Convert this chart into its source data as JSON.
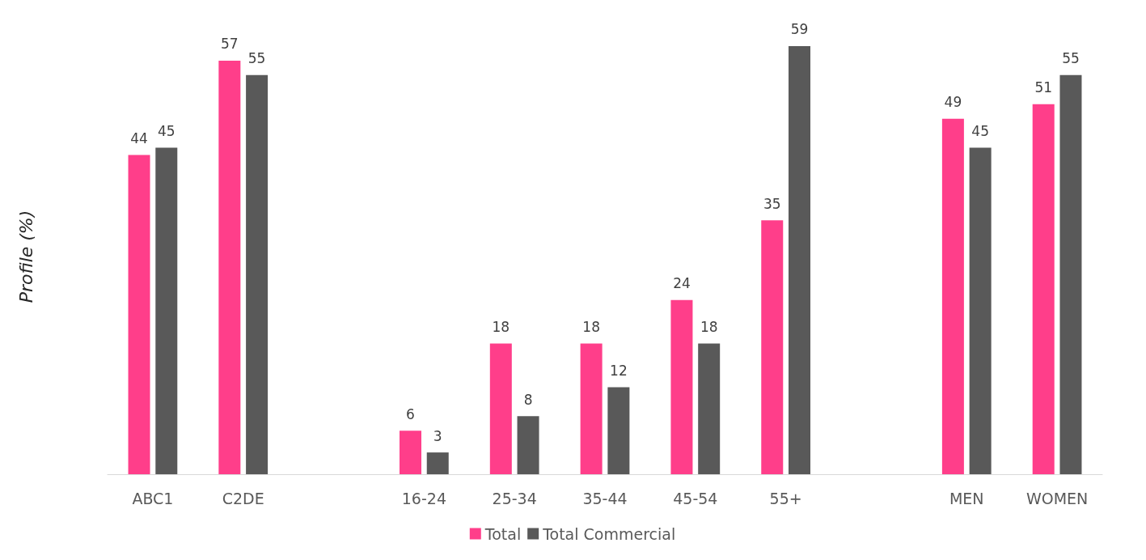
{
  "chart_data": {
    "type": "bar",
    "ylabel": "Profile (%)",
    "categories": [
      "ABC1",
      "C2DE",
      null,
      "16-24",
      "25-34",
      "35-44",
      "45-54",
      "55+",
      null,
      "MEN",
      "WOMEN"
    ],
    "series": [
      {
        "name": "Total",
        "color": "#ff3e8a",
        "values": [
          44,
          57,
          null,
          6,
          18,
          18,
          24,
          35,
          null,
          49,
          51
        ]
      },
      {
        "name": "Total Commercial",
        "color": "#595959",
        "values": [
          45,
          55,
          null,
          3,
          8,
          12,
          18,
          59,
          null,
          45,
          55
        ]
      }
    ],
    "data_labels": true,
    "legend": "bottom",
    "grid": false
  }
}
